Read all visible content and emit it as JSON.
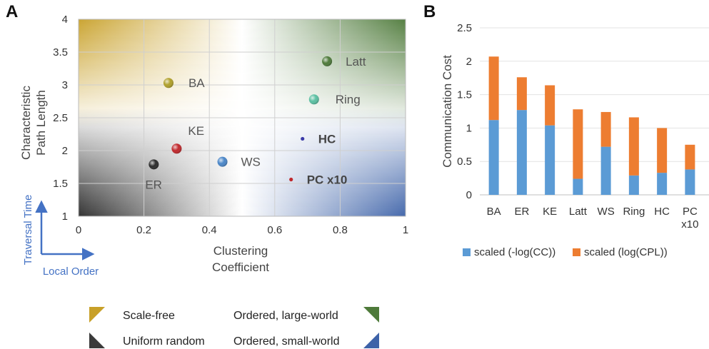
{
  "panel_a": {
    "letter": "A"
  },
  "panel_b": {
    "letter": "B"
  },
  "chart_data": [
    {
      "type": "scatter",
      "xlabel": "Clustering Coefficient",
      "ylabel": "Characteristic Path Length",
      "xlim": [
        0,
        1
      ],
      "ylim": [
        1,
        4
      ],
      "xticks": [
        "0",
        "0.2",
        "0.4",
        "0.6",
        "0.8",
        "1"
      ],
      "yticks": [
        "1",
        "1.5",
        "2",
        "2.5",
        "3",
        "3.5",
        "4"
      ],
      "grid": true,
      "points": [
        {
          "label": "BA",
          "x": 0.275,
          "y": 3.03,
          "color": "#b0a02a",
          "size": "large",
          "bold": false
        },
        {
          "label": "KE",
          "x": 0.3,
          "y": 2.03,
          "color": "#c0282c",
          "size": "large",
          "bold": false
        },
        {
          "label": "ER",
          "x": 0.23,
          "y": 1.79,
          "color": "#2b2b2b",
          "size": "large",
          "bold": false
        },
        {
          "label": "WS",
          "x": 0.44,
          "y": 1.83,
          "color": "#4a86c8",
          "size": "large",
          "bold": false
        },
        {
          "label": "Latt",
          "x": 0.76,
          "y": 3.36,
          "color": "#4e7a3a",
          "size": "large",
          "bold": false
        },
        {
          "label": "Ring",
          "x": 0.72,
          "y": 2.78,
          "color": "#5bc0a2",
          "size": "large",
          "bold": false
        },
        {
          "label": "HC",
          "x": 0.685,
          "y": 2.18,
          "color": "#3b3aa8",
          "size": "small",
          "bold": true
        },
        {
          "label": "PC x10",
          "x": 0.65,
          "y": 1.56,
          "color": "#c0282c",
          "size": "small",
          "bold": true
        }
      ],
      "corner_colors": {
        "top_left": "#c8a028",
        "top_right": "#4e7a3a",
        "bottom_left": "#2a2a2a",
        "bottom_right": "#3d62a8"
      },
      "arrows": {
        "vertical": "Traversal Time",
        "horizontal": "Local Order"
      },
      "legend": [
        {
          "label": "Scale-free",
          "color": "#c8a028",
          "corner": "top-left"
        },
        {
          "label": "Ordered, large-world",
          "color": "#4e7a3a",
          "corner": "top-right"
        },
        {
          "label": "Uniform random",
          "color": "#3a3a3a",
          "corner": "bottom-left"
        },
        {
          "label": "Ordered, small-world",
          "color": "#3d62a8",
          "corner": "bottom-right"
        }
      ]
    },
    {
      "type": "bar",
      "stacked": true,
      "ylabel": "Communication Cost",
      "ylim": [
        0,
        2.5
      ],
      "yticks": [
        "0",
        "0.5",
        "1",
        "1.5",
        "2",
        "2.5"
      ],
      "categories": [
        [
          "BA"
        ],
        [
          "ER"
        ],
        [
          "KE"
        ],
        [
          "Latt"
        ],
        [
          "WS"
        ],
        [
          "Ring"
        ],
        [
          "HC"
        ],
        [
          "PC",
          "x10"
        ]
      ],
      "series": [
        {
          "name": "scaled (-log(CC))",
          "color": "#5b9bd5",
          "values": [
            1.12,
            1.27,
            1.04,
            0.24,
            0.72,
            0.29,
            0.33,
            0.38
          ]
        },
        {
          "name": "scaled (log(CPL))",
          "color": "#ed7d31",
          "values": [
            0.95,
            0.49,
            0.6,
            1.04,
            0.52,
            0.87,
            0.67,
            0.37
          ]
        }
      ],
      "legend_position": "bottom"
    }
  ]
}
